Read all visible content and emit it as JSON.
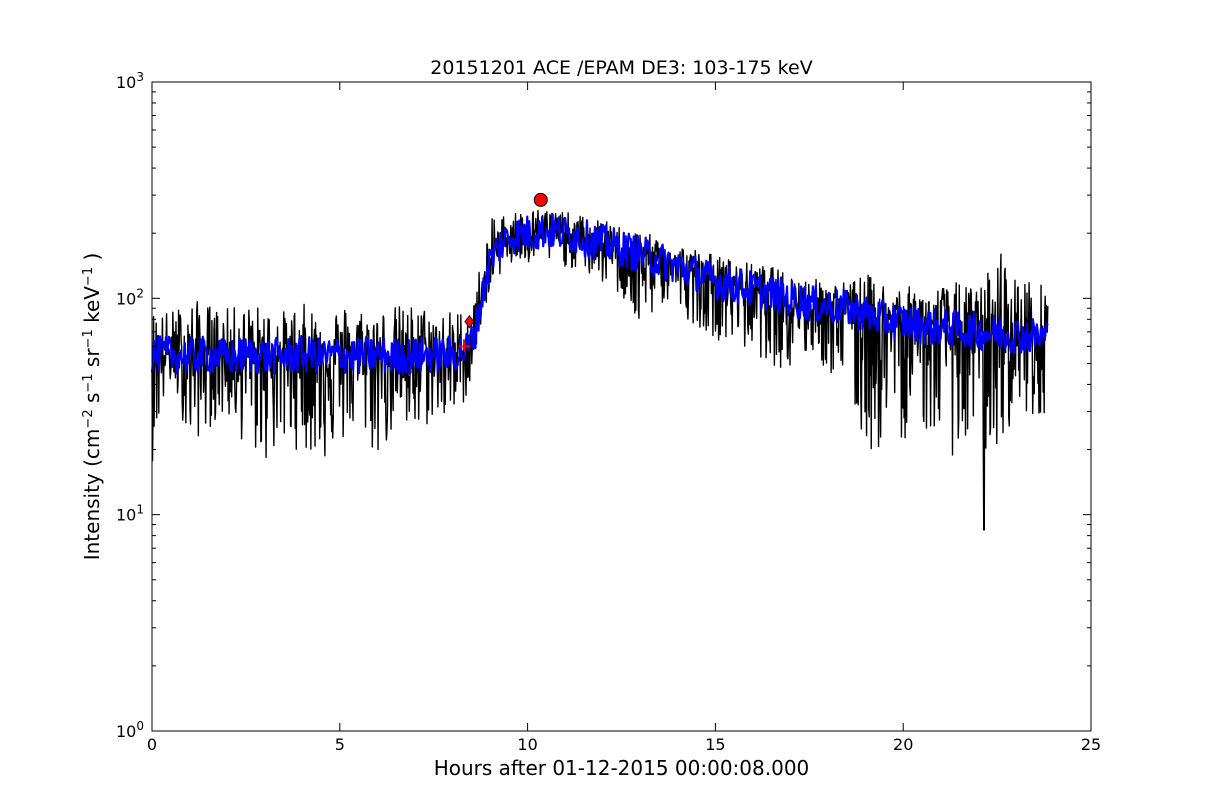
{
  "chart_data": {
    "type": "line",
    "title": "20151201 ACE /EPAM DE3: 103-175 keV",
    "xlabel": "Hours after 01-12-2015 00:00:08.000",
    "ylabel": {
      "prefix": "Intensity (cm",
      "exp1": "−2",
      "s": " s",
      "exp2": "−1",
      "sr": " sr",
      "exp3": "−1",
      "kev": " keV",
      "exp4": "−1",
      "suffix": " )"
    },
    "xlim": [
      0,
      25
    ],
    "ylim": [
      1,
      1000
    ],
    "yscale": "log",
    "grid": false,
    "x_ticks": [
      {
        "value": 0,
        "label": "0"
      },
      {
        "value": 5,
        "label": "5"
      },
      {
        "value": 10,
        "label": "10"
      },
      {
        "value": 15,
        "label": "15"
      },
      {
        "value": 20,
        "label": "20"
      },
      {
        "value": 25,
        "label": "25"
      }
    ],
    "y_ticks": [
      {
        "value": 1,
        "base": "10",
        "exp": "0"
      },
      {
        "value": 10,
        "base": "10",
        "exp": "1"
      },
      {
        "value": 100,
        "base": "10",
        "exp": "2"
      },
      {
        "value": 1000,
        "base": "10",
        "exp": "3"
      }
    ],
    "series": [
      {
        "color": "#000000",
        "style": "raw-noisy",
        "x": [
          0,
          0.5,
          1,
          1.5,
          2,
          2.5,
          3,
          3.5,
          4,
          4.5,
          5,
          5.5,
          6,
          6.5,
          7,
          7.5,
          8,
          8.4,
          8.6,
          8.8,
          9,
          9.3,
          9.6,
          10,
          10.5,
          11,
          11.5,
          12,
          12.5,
          13,
          13.5,
          14,
          14.5,
          15,
          15.5,
          16,
          16.5,
          17,
          17.5,
          18,
          18.5,
          19,
          19.5,
          20,
          20.5,
          21,
          21.5,
          22,
          22.5,
          23,
          23.5,
          23.85
        ],
        "y": [
          55,
          55,
          54,
          55,
          53,
          55,
          54,
          54,
          55,
          54,
          55,
          54,
          55,
          54,
          54,
          55,
          55,
          58,
          70,
          100,
          150,
          180,
          195,
          200,
          205,
          200,
          190,
          180,
          170,
          160,
          150,
          140,
          130,
          120,
          115,
          110,
          105,
          100,
          95,
          92,
          90,
          85,
          80,
          78,
          75,
          73,
          72,
          70,
          69,
          68,
          67,
          66
        ],
        "y_min": [
          17,
          40,
          20,
          25,
          28,
          20,
          17,
          20,
          20,
          17,
          20,
          25,
          17,
          25,
          20,
          28,
          25,
          35,
          50,
          80,
          110,
          130,
          140,
          140,
          145,
          140,
          130,
          115,
          100,
          60,
          95,
          85,
          75,
          65,
          60,
          55,
          50,
          42,
          55,
          45,
          35,
          18,
          20,
          22,
          25,
          20,
          18,
          20,
          17,
          30,
          28,
          30
        ],
        "y_max": [
          90,
          88,
          100,
          95,
          90,
          95,
          92,
          88,
          95,
          90,
          95,
          92,
          90,
          93,
          95,
          90,
          88,
          90,
          110,
          160,
          230,
          250,
          255,
          260,
          265,
          250,
          240,
          230,
          215,
          205,
          190,
          180,
          170,
          160,
          150,
          145,
          140,
          130,
          125,
          120,
          120,
          130,
          120,
          115,
          110,
          115,
          120,
          110,
          160,
          130,
          120,
          115
        ],
        "outliers": [
          {
            "x": 22.15,
            "y": 8.5
          },
          {
            "x": 22.6,
            "y": 160
          }
        ]
      },
      {
        "color": "#0000ff",
        "style": "smoothed",
        "x": [
          0,
          0.5,
          1,
          1.5,
          2,
          2.5,
          3,
          3.5,
          4,
          4.5,
          5,
          5.5,
          6,
          6.5,
          7,
          7.5,
          8,
          8.4,
          8.6,
          8.8,
          9,
          9.3,
          9.6,
          10,
          10.5,
          11,
          11.5,
          12,
          12.5,
          13,
          13.5,
          14,
          14.5,
          15,
          15.5,
          16,
          16.5,
          17,
          17.5,
          18,
          18.5,
          19,
          19.5,
          20,
          20.5,
          21,
          21.5,
          22,
          22.5,
          23,
          23.5,
          23.85
        ],
        "y": [
          55,
          55,
          54,
          55,
          53,
          55,
          54,
          54,
          55,
          54,
          55,
          54,
          55,
          54,
          54,
          55,
          55,
          58,
          70,
          100,
          150,
          180,
          195,
          200,
          205,
          200,
          190,
          180,
          170,
          160,
          150,
          140,
          130,
          120,
          115,
          110,
          105,
          100,
          95,
          92,
          90,
          85,
          80,
          78,
          75,
          73,
          72,
          70,
          69,
          68,
          67,
          66
        ],
        "spread": 1.22
      }
    ],
    "markers": [
      {
        "shape": "circle",
        "x": 10.35,
        "y": 285,
        "color": "#ff0000"
      },
      {
        "shape": "diamond",
        "x": 8.45,
        "y": 78,
        "color": "#ff0000"
      },
      {
        "shape": "plus",
        "x": 8.32,
        "y": 60,
        "color": "#ff0000"
      }
    ]
  }
}
